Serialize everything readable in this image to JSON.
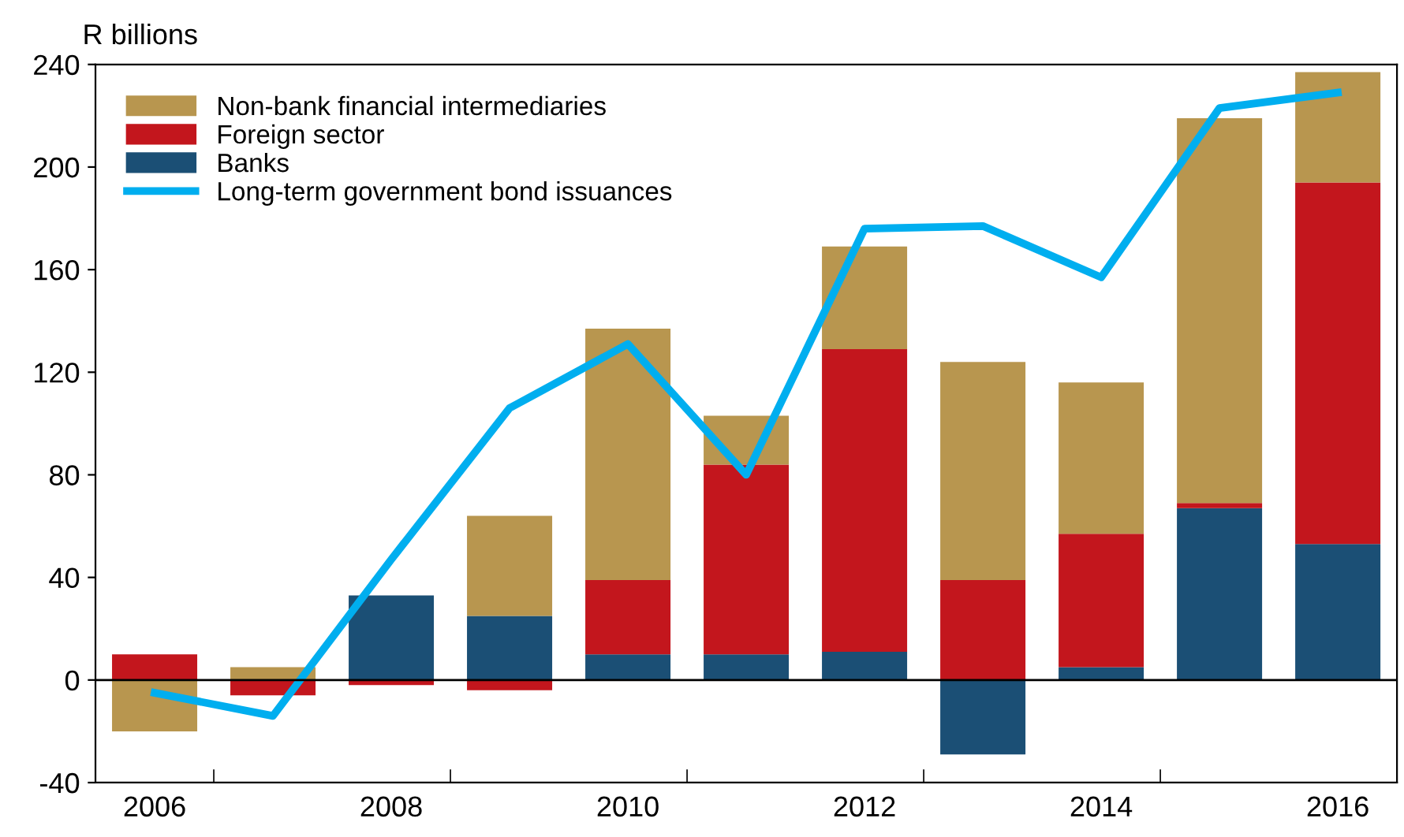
{
  "chart_data": {
    "type": "bar",
    "stacked": true,
    "ylabel": "R billions",
    "categories": [
      "2006",
      null,
      "2008",
      null,
      "2010",
      null,
      "2012",
      null,
      "2014",
      null,
      "2016"
    ],
    "series": [
      {
        "name": "Banks",
        "color": "#1b4f75",
        "values": [
          0,
          0,
          33,
          25,
          10,
          10,
          11,
          -29,
          5,
          67,
          53
        ]
      },
      {
        "name": "Foreign sector",
        "color": "#c3161d",
        "values": [
          10,
          -6,
          -2,
          -4,
          29,
          74,
          118,
          39,
          52,
          2,
          141
        ]
      },
      {
        "name": "Non-bank financial intermediaries",
        "color": "#b8964f",
        "values": [
          -20,
          5,
          0,
          39,
          98,
          19,
          40,
          85,
          59,
          150,
          43
        ]
      },
      {
        "name": "Long-term government bond issuances",
        "type": "line",
        "color": "#00aeef",
        "values": [
          -5,
          -14,
          47,
          106,
          131,
          80,
          176,
          177,
          157,
          223,
          229
        ]
      }
    ],
    "ylim": [
      -40,
      240
    ],
    "yticks": [
      -40,
      0,
      40,
      80,
      120,
      160,
      200,
      240
    ],
    "ref_lines": [
      {
        "axis": "y",
        "value": 0,
        "color": "#000000"
      }
    ],
    "grid": false,
    "legend": "top left"
  }
}
